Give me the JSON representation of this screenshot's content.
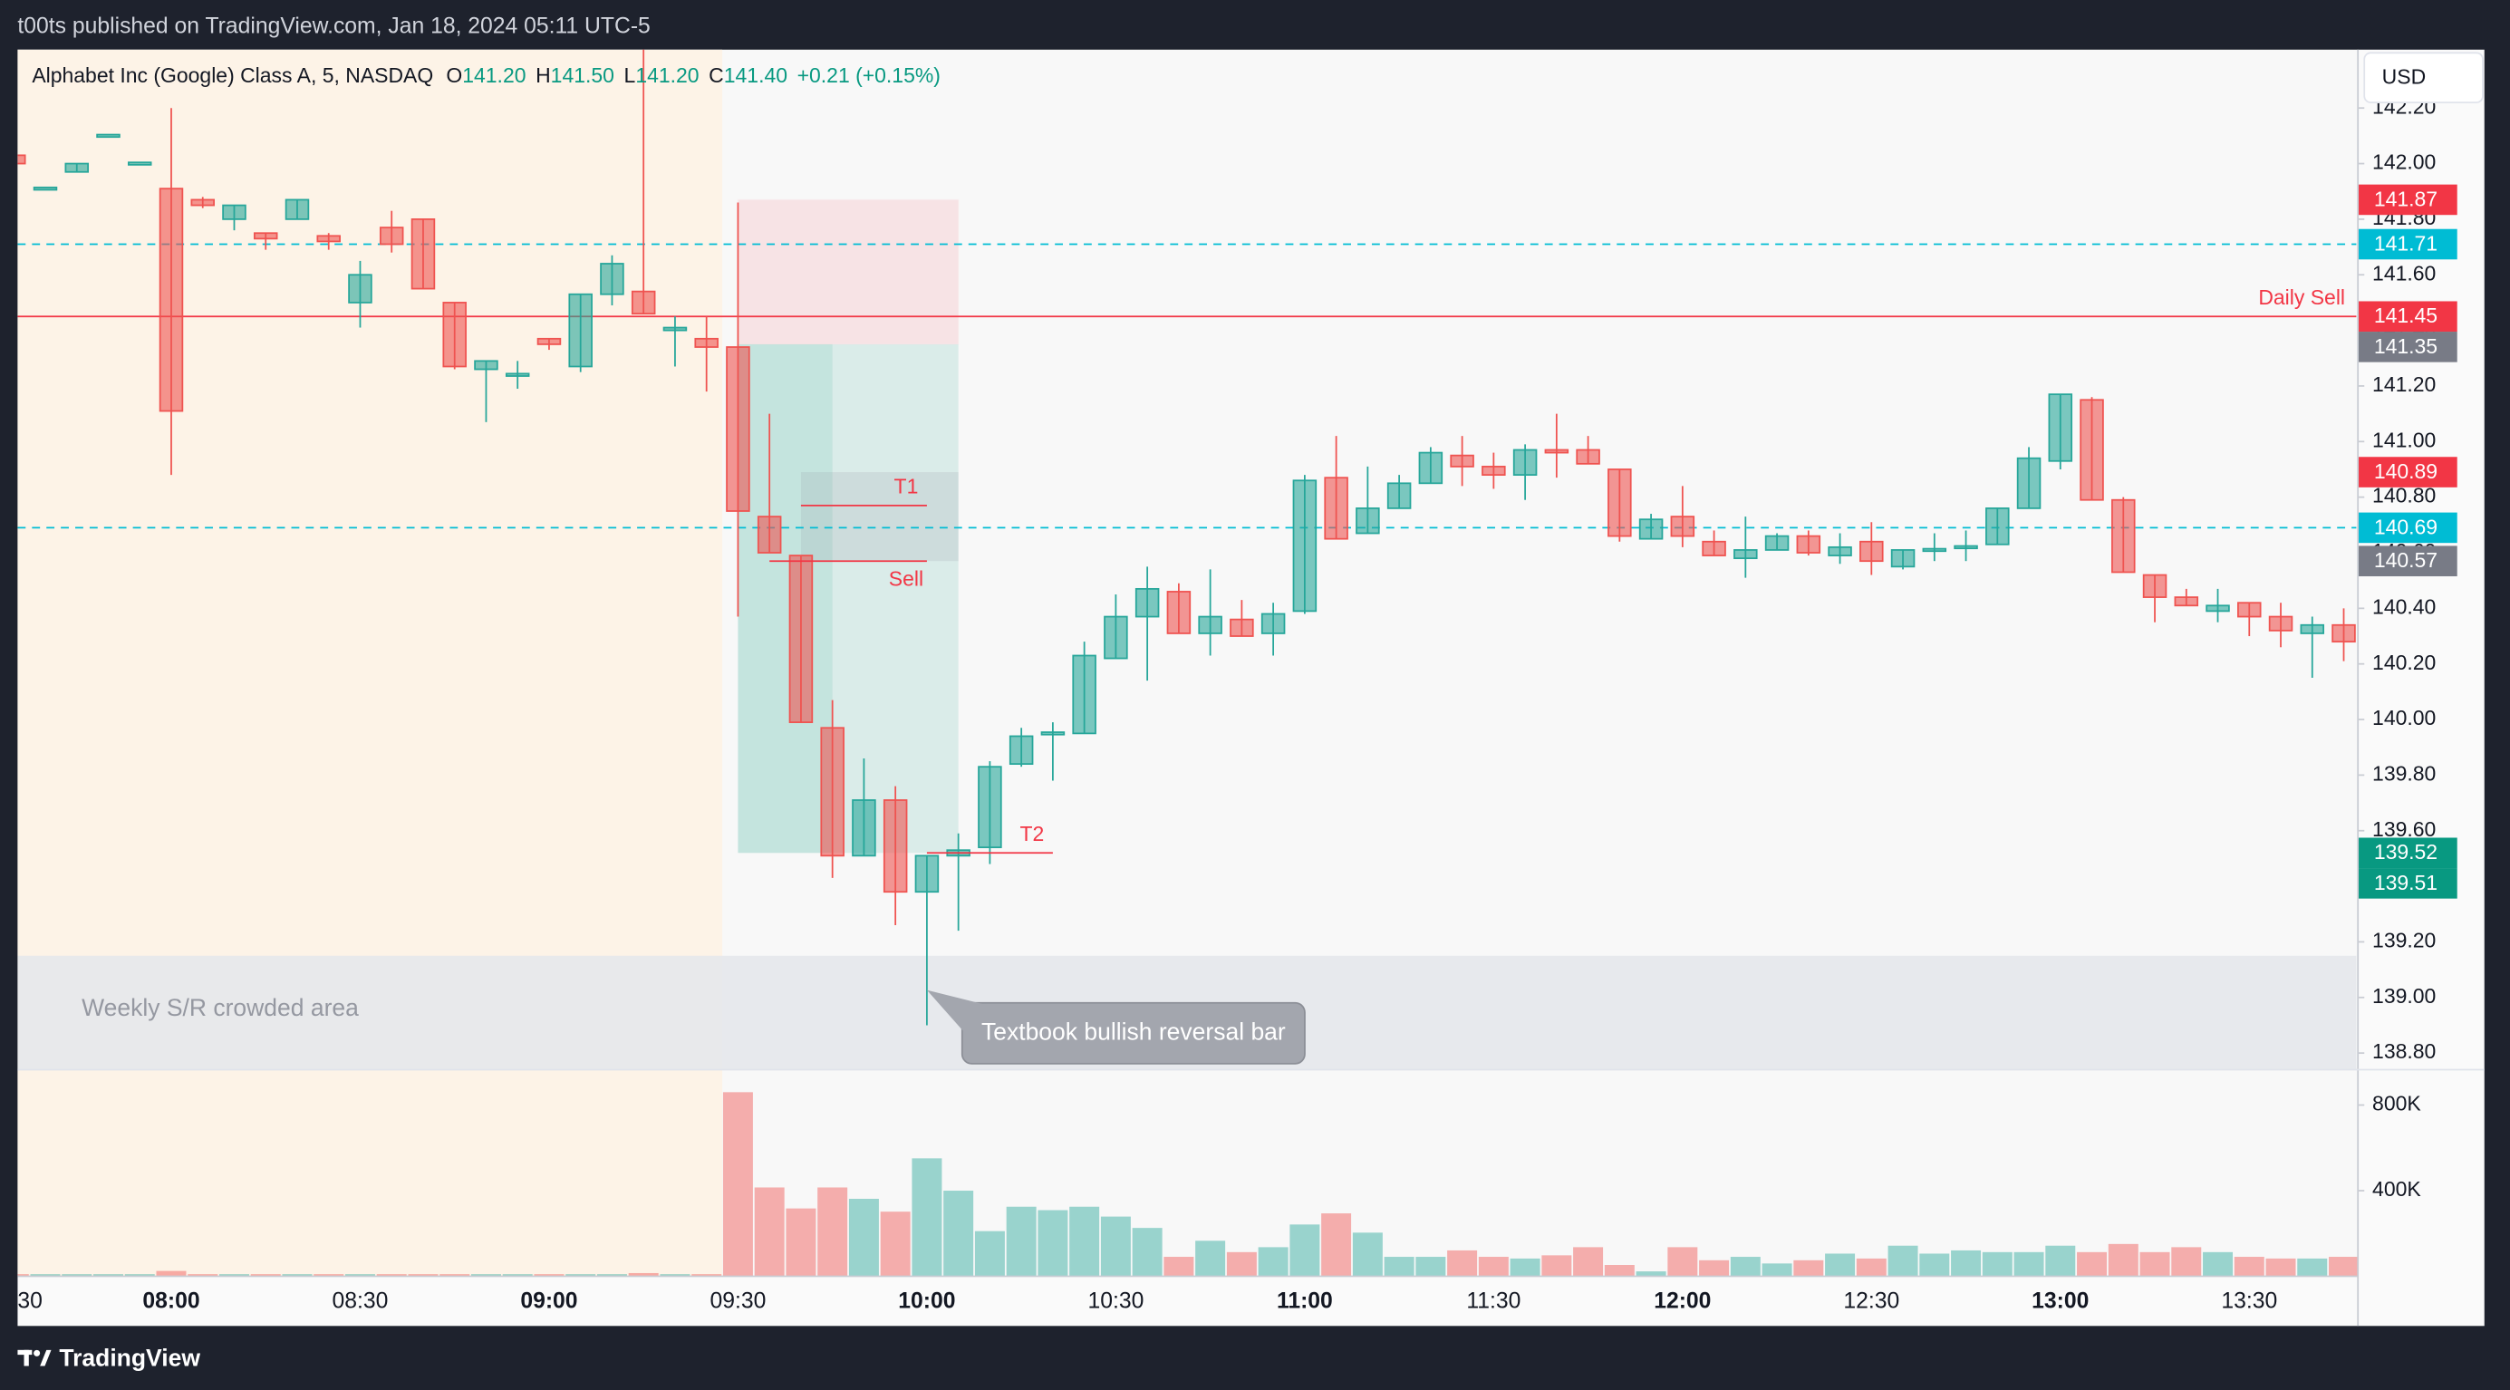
{
  "header": {
    "byline": "t00ts published on TradingView.com, Jan 18, 2024 05:11 UTC-5",
    "symbol": "Alphabet Inc (Google) Class A, 5, NASDAQ",
    "ohlc": [
      {
        "key": "O",
        "value": "141.20"
      },
      {
        "key": "H",
        "value": "141.50"
      },
      {
        "key": "L",
        "value": "141.20"
      },
      {
        "key": "C",
        "value": "141.40"
      }
    ],
    "change": "+0.21 (+0.15%)",
    "currency": "USD"
  },
  "footer": {
    "brand": "TradingView"
  },
  "chart_data": {
    "type": "candlestick",
    "x": [
      "07:35",
      "07:40",
      "07:45",
      "07:50",
      "07:55",
      "08:00",
      "08:05",
      "08:10",
      "08:15",
      "08:20",
      "08:25",
      "08:30",
      "08:35",
      "08:40",
      "08:45",
      "08:50",
      "08:55",
      "09:00",
      "09:05",
      "09:10",
      "09:15",
      "09:20",
      "09:25",
      "09:30",
      "09:35",
      "09:40",
      "09:45",
      "09:50",
      "09:55",
      "10:00",
      "10:05",
      "10:10",
      "10:15",
      "10:20",
      "10:25",
      "10:30",
      "10:35",
      "10:40",
      "10:45",
      "10:50",
      "10:55",
      "11:00",
      "11:05",
      "11:10",
      "11:15",
      "11:20",
      "11:25",
      "11:30",
      "11:35",
      "11:40",
      "11:45",
      "11:50",
      "11:55",
      "12:00",
      "12:05",
      "12:10",
      "12:15",
      "12:20",
      "12:25",
      "12:30",
      "12:35",
      "12:40",
      "12:45",
      "12:50",
      "12:55",
      "13:00",
      "13:05",
      "13:10",
      "13:15",
      "13:20",
      "13:25",
      "13:30",
      "13:35",
      "13:40",
      "13:45"
    ],
    "open": [
      142.03,
      141.91,
      141.97,
      142.1,
      142.0,
      141.91,
      141.87,
      141.8,
      141.75,
      141.8,
      141.74,
      141.5,
      141.77,
      141.8,
      141.5,
      141.26,
      141.24,
      141.37,
      141.27,
      141.53,
      141.54,
      141.4,
      141.37,
      141.34,
      140.73,
      140.59,
      139.97,
      139.51,
      139.71,
      139.38,
      139.51,
      139.54,
      139.84,
      139.95,
      139.95,
      140.22,
      140.37,
      140.46,
      140.31,
      140.36,
      140.31,
      140.39,
      140.87,
      140.67,
      140.76,
      140.85,
      140.95,
      140.91,
      140.88,
      140.97,
      140.97,
      140.9,
      140.65,
      140.73,
      140.64,
      140.58,
      140.61,
      140.66,
      140.59,
      140.64,
      140.55,
      140.61,
      140.62,
      140.63,
      140.76,
      140.93,
      141.15,
      140.79,
      140.52,
      140.44,
      140.39,
      140.42,
      140.37,
      140.31,
      140.34
    ],
    "high": [
      142.03,
      141.91,
      142.0,
      142.1,
      142.0,
      142.2,
      141.88,
      141.85,
      141.75,
      141.87,
      141.75,
      141.65,
      141.83,
      141.8,
      141.5,
      141.29,
      141.29,
      141.37,
      141.53,
      141.67,
      142.45,
      141.45,
      141.45,
      141.86,
      141.1,
      140.59,
      140.07,
      139.86,
      139.76,
      139.51,
      139.59,
      139.85,
      139.97,
      139.99,
      140.28,
      140.45,
      140.55,
      140.49,
      140.54,
      140.43,
      140.42,
      140.88,
      141.02,
      140.91,
      140.88,
      140.98,
      141.02,
      140.96,
      140.99,
      141.1,
      141.02,
      140.9,
      140.74,
      140.84,
      140.68,
      140.73,
      140.67,
      140.68,
      140.67,
      140.71,
      140.61,
      140.67,
      140.68,
      140.76,
      140.98,
      141.17,
      141.16,
      140.8,
      140.52,
      140.47,
      140.47,
      140.42,
      140.42,
      140.37,
      140.4
    ],
    "low": [
      141.99,
      141.91,
      141.97,
      142.1,
      142.0,
      140.88,
      141.84,
      141.76,
      141.69,
      141.8,
      141.69,
      141.41,
      141.68,
      141.55,
      141.26,
      141.07,
      141.19,
      141.33,
      141.25,
      141.49,
      141.46,
      141.27,
      141.18,
      140.37,
      140.6,
      139.99,
      139.43,
      139.51,
      139.26,
      138.9,
      139.24,
      139.48,
      139.83,
      139.78,
      139.95,
      140.22,
      140.14,
      140.31,
      140.23,
      140.3,
      140.23,
      140.38,
      140.65,
      140.67,
      140.76,
      140.85,
      140.84,
      140.83,
      140.79,
      140.87,
      140.92,
      140.64,
      140.65,
      140.62,
      140.59,
      140.51,
      140.61,
      140.59,
      140.56,
      140.52,
      140.54,
      140.57,
      140.57,
      140.63,
      140.76,
      140.9,
      140.79,
      140.53,
      140.35,
      140.41,
      140.35,
      140.3,
      140.26,
      140.15,
      140.21
    ],
    "close": [
      142.0,
      141.91,
      142.0,
      142.1,
      142.0,
      141.11,
      141.85,
      141.85,
      141.73,
      141.87,
      141.72,
      141.6,
      141.71,
      141.55,
      141.27,
      141.29,
      141.24,
      141.35,
      141.53,
      141.64,
      141.46,
      141.41,
      141.34,
      140.75,
      140.6,
      139.99,
      139.51,
      139.71,
      139.38,
      139.51,
      139.53,
      139.83,
      139.94,
      139.95,
      140.23,
      140.37,
      140.47,
      140.31,
      140.37,
      140.3,
      140.38,
      140.86,
      140.65,
      140.76,
      140.85,
      140.96,
      140.91,
      140.88,
      140.97,
      140.96,
      140.92,
      140.66,
      140.72,
      140.66,
      140.59,
      140.61,
      140.66,
      140.6,
      140.62,
      140.57,
      140.61,
      140.61,
      140.62,
      140.76,
      140.94,
      141.17,
      140.79,
      140.53,
      140.44,
      140.41,
      140.41,
      140.37,
      140.32,
      140.34,
      140.28
    ],
    "volume": [
      10000,
      10000,
      10000,
      10000,
      10000,
      25000,
      10000,
      10000,
      10000,
      10000,
      10000,
      10000,
      10000,
      10000,
      10000,
      10000,
      10000,
      10000,
      10000,
      10000,
      15000,
      10000,
      10000,
      860000,
      415000,
      317000,
      415000,
      362000,
      302000,
      551000,
      400000,
      211000,
      325000,
      309000,
      325000,
      279000,
      226000,
      91000,
      166000,
      113000,
      136000,
      242000,
      294000,
      204000,
      91000,
      91000,
      121000,
      91000,
      83000,
      98000,
      136000,
      53000,
      23000,
      136000,
      75000,
      91000,
      60000,
      75000,
      106000,
      83000,
      143000,
      106000,
      121000,
      113000,
      113000,
      143000,
      113000,
      151000,
      113000,
      136000,
      113000,
      91000,
      83000,
      83000,
      91000
    ],
    "up_color": "#26a69a",
    "down_color": "#ef5350",
    "xlim": [
      "07:35:36",
      "13:47:00"
    ],
    "xticks": [
      {
        "value": "07:30",
        "label": "30"
      },
      "08:00",
      "08:30",
      "09:00",
      "09:30",
      "10:00",
      "10:30",
      "11:00",
      "11:30",
      "12:00",
      "12:30",
      "13:00",
      "13:30"
    ],
    "ylim": [
      138.74,
      142.41
    ],
    "yticks": [
      {
        "value": 138.8,
        "label": "138.80"
      },
      {
        "value": 139.0,
        "label": "139.00"
      },
      {
        "value": 139.2,
        "label": "139.20"
      },
      {
        "value": 139.4,
        "label": "139.40"
      },
      {
        "value": 139.6,
        "label": "139.60"
      },
      {
        "value": 139.8,
        "label": "139.80"
      },
      {
        "value": 140.0,
        "label": "140.00"
      },
      {
        "value": 140.2,
        "label": "140.20"
      },
      {
        "value": 140.4,
        "label": "140.40"
      },
      {
        "value": 140.6,
        "label": "140.60"
      },
      {
        "value": 140.8,
        "label": "140.80"
      },
      {
        "value": 141.0,
        "label": "141.00"
      },
      {
        "value": 141.2,
        "label": "141.20"
      },
      {
        "value": 141.4,
        "label": "141.40"
      },
      {
        "value": 141.6,
        "label": "141.60"
      },
      {
        "value": 141.8,
        "label": "141.80"
      },
      {
        "value": 142.0,
        "label": "142.00"
      },
      {
        "value": 142.2,
        "label": "142.20"
      }
    ],
    "vlim": [
      0,
      965000
    ],
    "vticks": [
      {
        "value": 400000,
        "label": "400K"
      },
      {
        "value": 800000,
        "label": "800K"
      }
    ],
    "premarket_until": "09:30",
    "price_labels": [
      {
        "value": 141.87,
        "color": "#f23645"
      },
      {
        "value": 141.71,
        "color": "#00bcd4",
        "line": "dashed"
      },
      {
        "value": 141.45,
        "color": "#f23645",
        "line": "solid",
        "text": "Daily Sell"
      },
      {
        "value": 141.35,
        "color": "#787b86"
      },
      {
        "value": 140.89,
        "color": "#f23645"
      },
      {
        "value": 140.69,
        "color": "#00bcd4",
        "line": "dashed"
      },
      {
        "value": 140.57,
        "color": "#787b86"
      },
      {
        "value": 139.52,
        "color": "#089981"
      },
      {
        "value": 139.51,
        "color": "#089981"
      }
    ],
    "position": {
      "from": "09:30",
      "to": "10:05",
      "fill_to": "09:45",
      "stop": 141.87,
      "entry": 141.35,
      "target": 139.52
    },
    "box": {
      "from": "09:40",
      "to": "10:05",
      "top": 140.89,
      "bottom": 140.57
    },
    "marks": [
      {
        "text": "T1",
        "price": 140.77,
        "from": "09:40",
        "to": "10:00",
        "label_below": false
      },
      {
        "text": "Sell",
        "price": 140.57,
        "from": "09:35",
        "to": "10:00",
        "label_below": true
      },
      {
        "text": "T2",
        "price": 139.52,
        "from": "10:00",
        "to": "10:20",
        "label_below": false
      }
    ],
    "zone": {
      "text": "Weekly S/R crowded area",
      "top": 139.15,
      "bottom": 138.74
    },
    "callout": {
      "text": "Textbook bullish reversal bar",
      "anchor": "10:00"
    }
  }
}
